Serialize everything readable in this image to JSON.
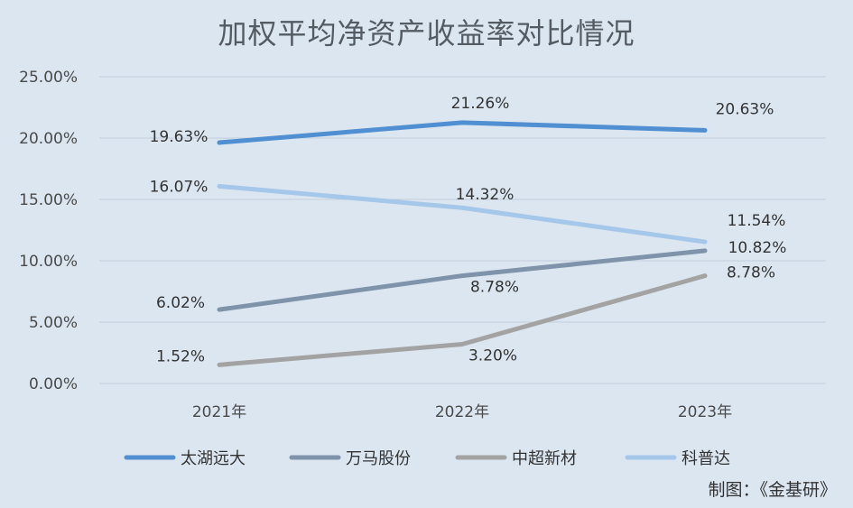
{
  "chart_data": {
    "type": "line",
    "title": "加权平均净资产收益率对比情况",
    "categories": [
      "2021年",
      "2022年",
      "2023年"
    ],
    "ylim": [
      0,
      25
    ],
    "yticks": [
      "0.00%",
      "5.00%",
      "10.00%",
      "15.00%",
      "20.00%",
      "25.00%"
    ],
    "grid": true,
    "legend_position": "bottom",
    "series": [
      {
        "name": "太湖远大",
        "values": [
          19.63,
          21.26,
          20.63
        ],
        "labels": [
          "19.63%",
          "21.26%",
          "20.63%"
        ],
        "color": "#4f8fd2"
      },
      {
        "name": "万马股份",
        "values": [
          6.02,
          8.78,
          10.82
        ],
        "labels": [
          "6.02%",
          "8.78%",
          "10.82%"
        ],
        "color": "#7f93ab"
      },
      {
        "name": "中超新材",
        "values": [
          1.52,
          3.2,
          8.78
        ],
        "labels": [
          "1.52%",
          "3.20%",
          "8.78%"
        ],
        "color": "#a3a3a3"
      },
      {
        "name": "科普达",
        "values": [
          16.07,
          14.32,
          11.54
        ],
        "labels": [
          "16.07%",
          "14.32%",
          "11.54%"
        ],
        "color": "#a5c7ea"
      }
    ]
  },
  "credit": "制图：《金基研》"
}
